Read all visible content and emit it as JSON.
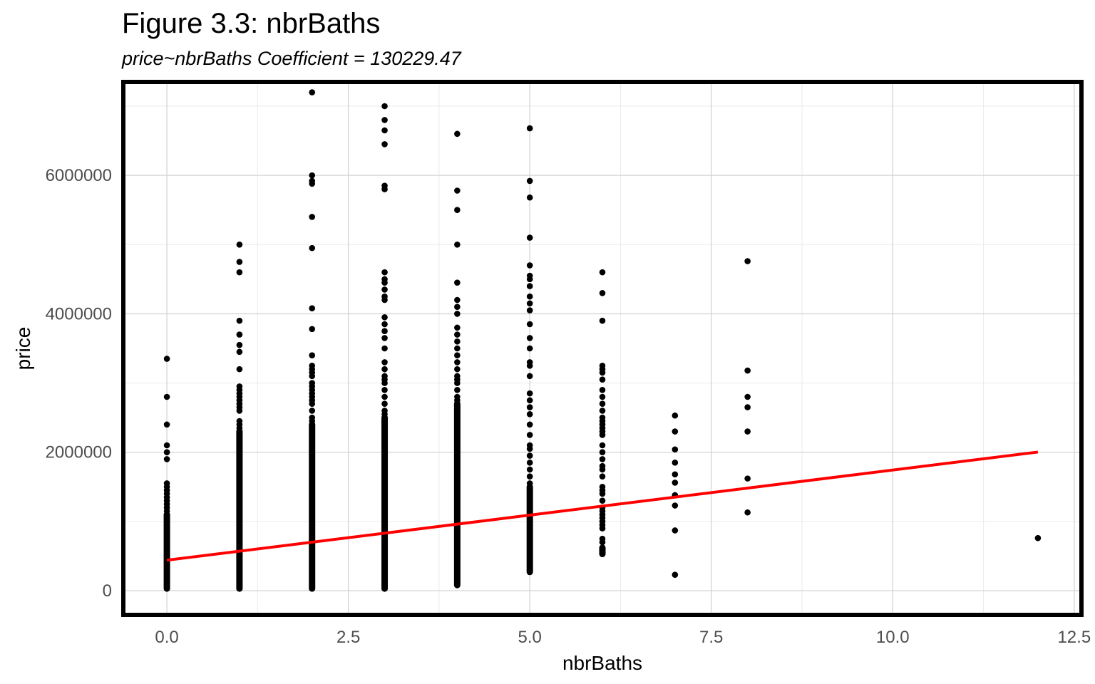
{
  "chart_data": {
    "type": "scatter",
    "title": "Figure 3.3: nbrBaths",
    "subtitle": "price~nbrBaths Coefficient = 130229.47",
    "xlabel": "nbrBaths",
    "ylabel": "price",
    "xlim": [
      -0.6,
      12.6
    ],
    "ylim": [
      -350000,
      7350000
    ],
    "x_ticks": [
      0,
      2.5,
      5,
      7.5,
      10,
      12.5
    ],
    "x_tick_labels": [
      "0.0",
      "2.5",
      "5.0",
      "7.5",
      "10.0",
      "12.5"
    ],
    "y_ticks": [
      0,
      2000000,
      4000000,
      6000000
    ],
    "y_tick_labels": [
      "0",
      "2000000",
      "4000000",
      "6000000"
    ],
    "grid": true,
    "point_color": "#000000",
    "line_color": "#ff0000",
    "columns": [
      {
        "x": 0,
        "dense_range": [
          30000,
          1100000
        ],
        "outliers": [
          1150000,
          1200000,
          1250000,
          1300000,
          1350000,
          1400000,
          1450000,
          1500000,
          1550000,
          1900000,
          2000000,
          2100000,
          2400000,
          2800000,
          3350000
        ]
      },
      {
        "x": 1,
        "dense_range": [
          30000,
          2300000
        ],
        "outliers": [
          2350000,
          2400000,
          2450000,
          2600000,
          2650000,
          2700000,
          2750000,
          2800000,
          2850000,
          2900000,
          2950000,
          3200000,
          3450000,
          3550000,
          3700000,
          3900000,
          4600000,
          4750000,
          5000000
        ]
      },
      {
        "x": 2,
        "dense_range": [
          30000,
          2400000
        ],
        "outliers": [
          2450000,
          2500000,
          2600000,
          2700000,
          2750000,
          2800000,
          2850000,
          2900000,
          2950000,
          3000000,
          3100000,
          3150000,
          3200000,
          3250000,
          3400000,
          3780000,
          4080000,
          4950000,
          5400000,
          5880000,
          5920000,
          6000000,
          7200000
        ]
      },
      {
        "x": 3,
        "dense_range": [
          30000,
          2500000
        ],
        "outliers": [
          2550000,
          2600000,
          2700000,
          2800000,
          2900000,
          3000000,
          3050000,
          3100000,
          3200000,
          3300000,
          3500000,
          3650000,
          3750000,
          3850000,
          3950000,
          4200000,
          4250000,
          4350000,
          4450000,
          4500000,
          4600000,
          5800000,
          5850000,
          6450000,
          6650000,
          6800000,
          7000000
        ]
      },
      {
        "x": 4,
        "dense_range": [
          80000,
          2700000
        ],
        "outliers": [
          2750000,
          2800000,
          2900000,
          3000000,
          3050000,
          3100000,
          3200000,
          3300000,
          3400000,
          3500000,
          3600000,
          3700000,
          3800000,
          4000000,
          4100000,
          4200000,
          4450000,
          5000000,
          5500000,
          5780000,
          6600000
        ]
      },
      {
        "x": 5,
        "dense_range": [
          270000,
          1500000
        ],
        "outliers": [
          1550000,
          1650000,
          1750000,
          1850000,
          1950000,
          2050000,
          2100000,
          2250000,
          2400000,
          2550000,
          2650000,
          2750000,
          2850000,
          3100000,
          3250000,
          3300000,
          3500000,
          3650000,
          3850000,
          4050000,
          4150000,
          4250000,
          4400000,
          4500000,
          4550000,
          4700000,
          5100000,
          5680000,
          5920000,
          6680000
        ]
      },
      {
        "x": 6,
        "dense_range": [
          530000,
          620000
        ],
        "outliers": [
          700000,
          750000,
          900000,
          950000,
          1000000,
          1050000,
          1100000,
          1150000,
          1200000,
          1300000,
          1400000,
          1450000,
          1500000,
          1650000,
          1750000,
          1800000,
          1900000,
          2000000,
          2100000,
          2250000,
          2300000,
          2350000,
          2400000,
          2450000,
          2500000,
          2600000,
          2700000,
          2800000,
          2900000,
          3050000,
          3150000,
          3200000,
          3250000,
          3900000,
          4300000,
          4600000
        ]
      },
      {
        "x": 7,
        "dense_range": null,
        "outliers": [
          230000,
          870000,
          1230000,
          1380000,
          1560000,
          1680000,
          1850000,
          2040000,
          2300000,
          2530000
        ]
      },
      {
        "x": 8,
        "dense_range": null,
        "outliers": [
          1130000,
          1620000,
          2300000,
          2650000,
          2800000,
          3180000,
          4760000
        ]
      },
      {
        "x": 12,
        "dense_range": null,
        "outliers": [
          760000
        ]
      }
    ],
    "regression": {
      "intercept": 440000,
      "slope": 130229.47,
      "x_range": [
        0,
        12
      ]
    }
  }
}
